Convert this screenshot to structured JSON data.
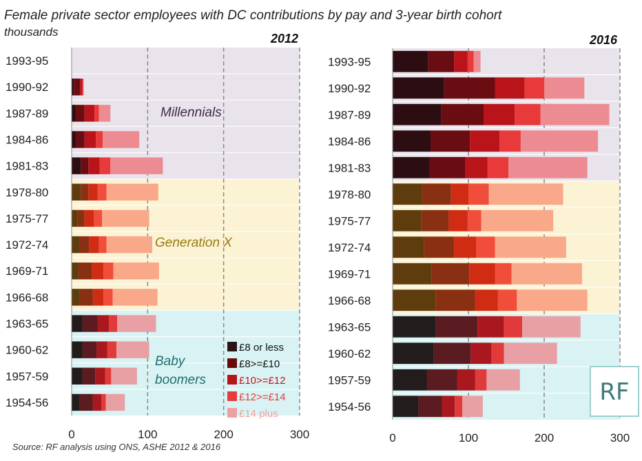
{
  "title": "Female private sector employees with DC contributions by pay and 3-year birth cohort",
  "subtitle": "thousands",
  "source": "Source: RF analysis using ONS, ASHE 2012 & 2016",
  "logo_text": "RF",
  "generations": [
    {
      "label": "Millennials",
      "rows": [
        0,
        4
      ],
      "background": "#e9e4ec",
      "label_color": "#3b2a48"
    },
    {
      "label": "Generation X",
      "rows": [
        5,
        9
      ],
      "background": "#fcf3d5",
      "label_color": "#9a7b10"
    },
    {
      "label": "Baby boomers",
      "rows": [
        10,
        13
      ],
      "background": "#d9f3f4",
      "label_color": "#1f6e6e"
    }
  ],
  "legend": [
    {
      "label": "£8 or less",
      "swatch": "#2a1414",
      "text_color": "#111111"
    },
    {
      "label": "£8>=£10",
      "swatch": "#6a0a0a",
      "text_color": "#111111"
    },
    {
      "label": "£10>=£12",
      "swatch": "#b8141a",
      "text_color": "#c8141a"
    },
    {
      "label": "£12>=£14",
      "swatch": "#e83a3a",
      "text_color": "#e83a3a"
    },
    {
      "label": "£14 plus",
      "swatch": "#f0a0a0",
      "text_color": "#f0a0a0"
    }
  ],
  "palettes": {
    "Millennials": [
      "#2c0e12",
      "#6a0d12",
      "#b8141a",
      "#e83a3a",
      "#ec8c92"
    ],
    "Generation X": [
      "#5e3c0e",
      "#8a3012",
      "#d02c14",
      "#f04e3a",
      "#faa88a"
    ],
    "Baby boomers": [
      "#221c1c",
      "#5a1c20",
      "#a8181e",
      "#e03a3a",
      "#e8a0a4"
    ]
  },
  "chart_data": [
    {
      "type": "bar",
      "orientation": "horizontal",
      "stacked": true,
      "title": "2012",
      "categories": [
        "1993-95",
        "1990-92",
        "1987-89",
        "1984-86",
        "1981-83",
        "1978-80",
        "1975-77",
        "1972-74",
        "1969-71",
        "1966-68",
        "1963-65",
        "1960-62",
        "1957-59",
        "1954-56"
      ],
      "xlim": [
        0,
        300
      ],
      "xticks": [
        0,
        100,
        200,
        300
      ],
      "grid": "dashed vertical at 100, 200, 300",
      "series": [
        {
          "name": "£8 or less",
          "values": [
            0,
            3,
            5,
            5,
            12,
            12,
            8,
            10,
            9,
            10,
            14,
            14,
            14,
            10
          ]
        },
        {
          "name": "£8>=£10",
          "values": [
            0,
            8,
            12,
            12,
            10,
            10,
            9,
            13,
            18,
            18,
            20,
            19,
            17,
            18
          ]
        },
        {
          "name": "£10>=£12",
          "values": [
            0,
            3,
            13,
            15,
            15,
            12,
            12,
            13,
            15,
            14,
            15,
            14,
            13,
            11
          ]
        },
        {
          "name": "£12>=£14",
          "values": [
            0,
            1,
            6,
            9,
            14,
            12,
            11,
            10,
            13,
            12,
            11,
            12,
            8,
            6
          ]
        },
        {
          "name": "£14 plus",
          "values": [
            0,
            1,
            15,
            48,
            69,
            68,
            62,
            60,
            60,
            59,
            51,
            43,
            34,
            25
          ]
        }
      ]
    },
    {
      "type": "bar",
      "orientation": "horizontal",
      "stacked": true,
      "title": "2016",
      "categories": [
        "1993-95",
        "1990-92",
        "1987-89",
        "1984-86",
        "1981-83",
        "1978-80",
        "1975-77",
        "1972-74",
        "1969-71",
        "1966-68",
        "1963-65",
        "1960-62",
        "1957-59",
        "1954-56"
      ],
      "xlim": [
        0,
        300
      ],
      "xticks": [
        0,
        100,
        200,
        300
      ],
      "grid": "dashed vertical at 100, 200, 300",
      "series": [
        {
          "name": "£8 or less",
          "values": [
            47,
            68,
            64,
            50,
            49,
            39,
            38,
            41,
            51,
            57,
            57,
            54,
            45,
            34
          ]
        },
        {
          "name": "£8>=£10",
          "values": [
            34,
            67,
            56,
            52,
            47,
            38,
            36,
            40,
            50,
            52,
            55,
            49,
            40,
            31
          ]
        },
        {
          "name": "£10>=£12",
          "values": [
            18,
            39,
            41,
            39,
            29,
            23,
            25,
            29,
            34,
            30,
            35,
            27,
            24,
            17
          ]
        },
        {
          "name": "£12>=£14",
          "values": [
            8,
            26,
            34,
            28,
            28,
            27,
            18,
            25,
            22,
            25,
            24,
            17,
            15,
            10
          ]
        },
        {
          "name": "£14 plus",
          "values": [
            9,
            53,
            91,
            102,
            104,
            98,
            95,
            94,
            93,
            93,
            77,
            70,
            44,
            27
          ]
        }
      ]
    }
  ]
}
